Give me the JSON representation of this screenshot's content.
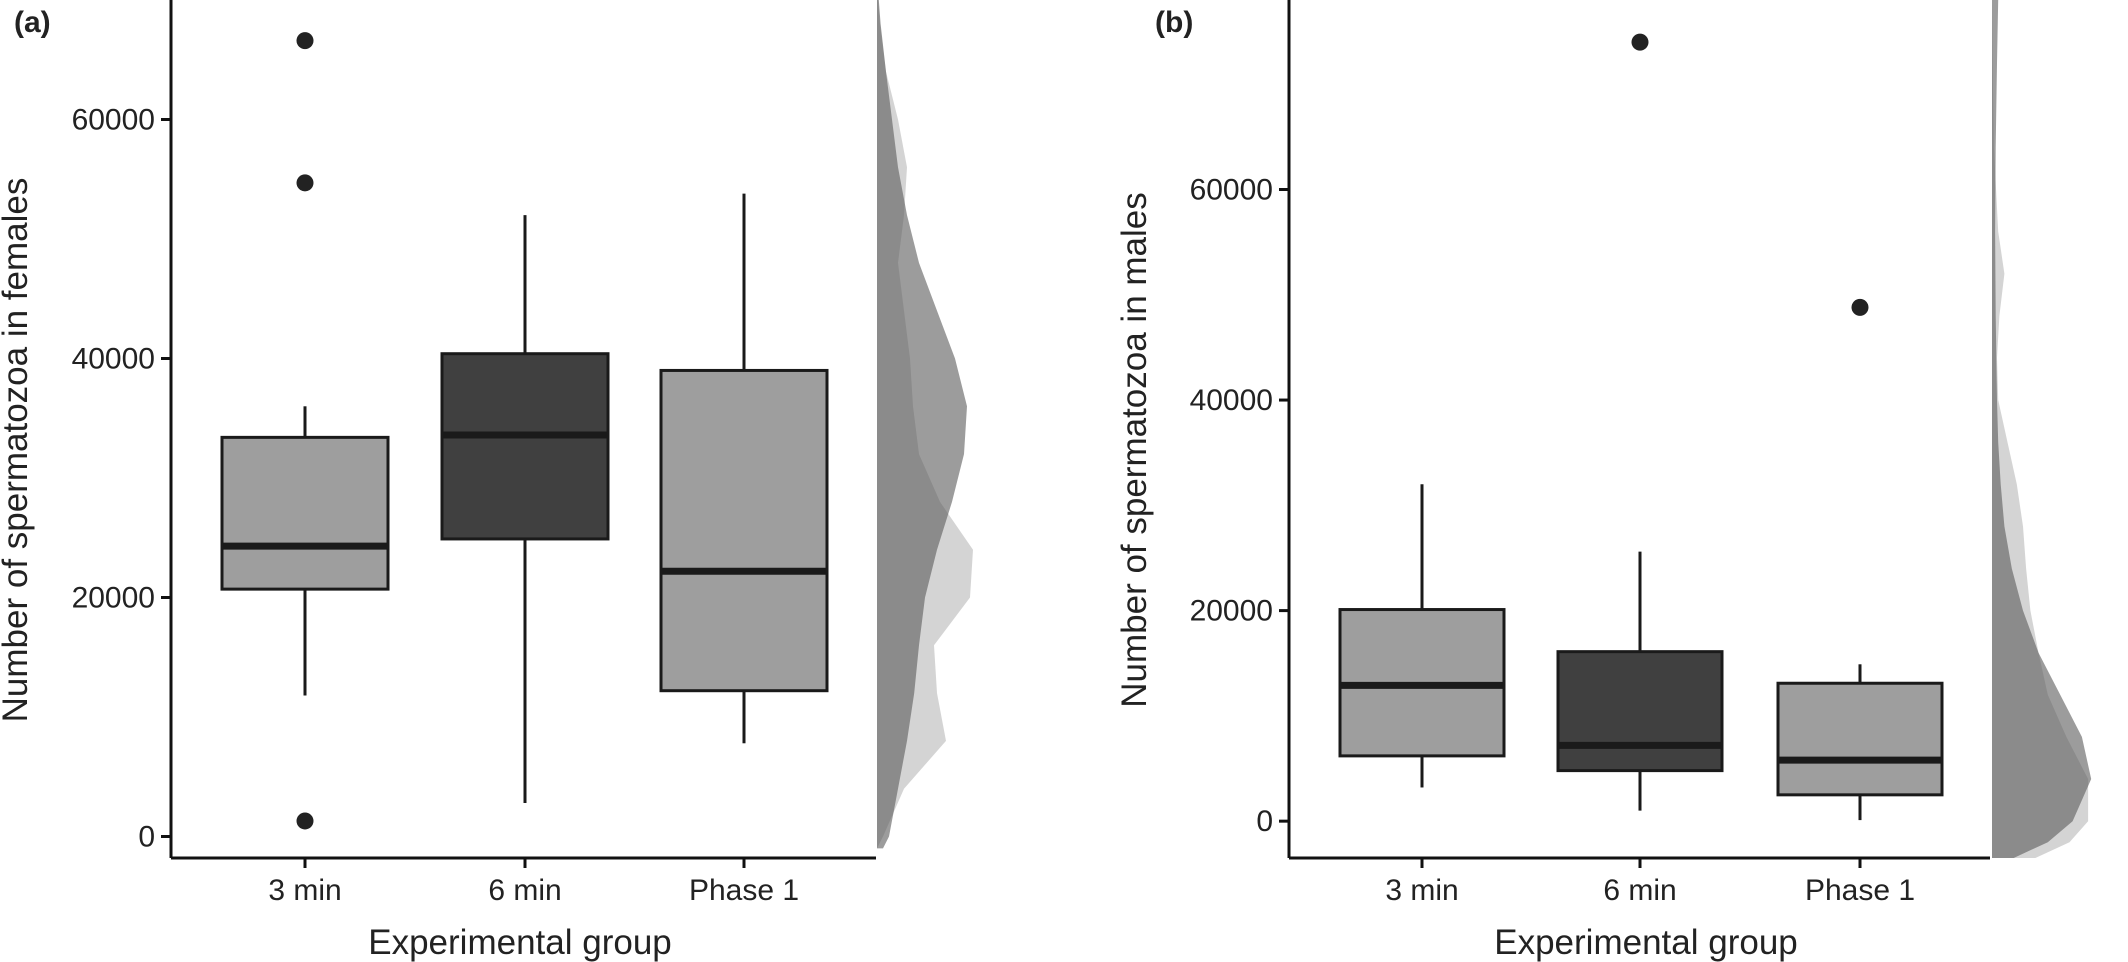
{
  "chart_data": [
    {
      "panel_label": "(a)",
      "type": "box",
      "xlabel": "Experimental group",
      "ylabel": "Number of spermatozoa in females",
      "ylim": [
        -1800,
        70000
      ],
      "yticks": [
        0,
        20000,
        40000,
        60000
      ],
      "ytick_labels": [
        "0",
        "20000",
        "40000",
        "60000"
      ],
      "categories": [
        "3 min",
        "6 min",
        "Phase 1"
      ],
      "grid": false,
      "colors": {
        "fill_light": "#9e9e9e",
        "fill_dark": "#404040",
        "stroke": "#1a1a1a",
        "outlier": "#222222"
      },
      "boxes": [
        {
          "category": "3 min",
          "q1": 20700,
          "median": 24300,
          "q3": 33400,
          "whisker_low": 11800,
          "whisker_high": 36000,
          "outliers": [
            66600,
            54700,
            1300
          ],
          "fill": "light"
        },
        {
          "category": "6 min",
          "q1": 24900,
          "median": 33600,
          "q3": 40400,
          "whisker_low": 2800,
          "whisker_high": 52000,
          "outliers": [],
          "fill": "dark"
        },
        {
          "category": "Phase 1",
          "q1": 12200,
          "median": 22200,
          "q3": 39000,
          "whisker_low": 7800,
          "whisker_high": 53800,
          "outliers": [],
          "fill": "light"
        }
      ],
      "density_margin": {
        "dark": {
          "y": [
            -1000,
            0,
            4000,
            8000,
            12000,
            16000,
            20000,
            24000,
            28000,
            32000,
            36000,
            40000,
            44000,
            48000,
            52000,
            56000,
            60000,
            64000,
            68000,
            70000
          ],
          "density": [
            0.1,
            0.2,
            0.35,
            0.5,
            0.62,
            0.7,
            0.8,
            1.0,
            1.25,
            1.45,
            1.5,
            1.3,
            1.0,
            0.7,
            0.5,
            0.35,
            0.25,
            0.15,
            0.06,
            0.03
          ]
        },
        "light": {
          "y": [
            -1000,
            0,
            4000,
            8000,
            12000,
            16000,
            20000,
            24000,
            28000,
            32000,
            36000,
            40000,
            44000,
            48000,
            52000,
            56000,
            60000,
            64000,
            68000,
            70000
          ],
          "density": [
            0.0,
            0.1,
            0.45,
            1.15,
            1.0,
            0.95,
            1.55,
            1.6,
            1.05,
            0.7,
            0.6,
            0.55,
            0.45,
            0.35,
            0.45,
            0.5,
            0.35,
            0.15,
            0.05,
            0.02
          ]
        }
      }
    },
    {
      "panel_label": "(b)",
      "type": "box",
      "xlabel": "Experimental group",
      "ylabel": "Number of spermatozoa in males",
      "ylim": [
        -3500,
        78000
      ],
      "yticks": [
        0,
        20000,
        40000,
        60000
      ],
      "ytick_labels": [
        "0",
        "20000",
        "40000",
        "60000"
      ],
      "categories": [
        "3 min",
        "6 min",
        "Phase 1"
      ],
      "grid": false,
      "colors": {
        "fill_light": "#9e9e9e",
        "fill_dark": "#404040",
        "stroke": "#1a1a1a",
        "outlier": "#222222"
      },
      "boxes": [
        {
          "category": "3 min",
          "q1": 6200,
          "median": 12900,
          "q3": 20100,
          "whisker_low": 3200,
          "whisker_high": 32000,
          "outliers": [],
          "fill": "light"
        },
        {
          "category": "6 min",
          "q1": 4800,
          "median": 7200,
          "q3": 16100,
          "whisker_low": 1000,
          "whisker_high": 25600,
          "outliers": [
            74000
          ],
          "fill": "dark"
        },
        {
          "category": "Phase 1",
          "q1": 2500,
          "median": 5800,
          "q3": 13100,
          "whisker_low": 100,
          "whisker_high": 14900,
          "outliers": [
            48800
          ],
          "fill": "light"
        }
      ],
      "density_margin": {
        "dark": {
          "y": [
            -3500,
            -2000,
            0,
            4000,
            8000,
            12000,
            16000,
            20000,
            24000,
            28000,
            32000,
            36000,
            40000,
            48000,
            56000,
            64000,
            72000,
            78000
          ],
          "density": [
            0.35,
            0.9,
            1.3,
            1.6,
            1.45,
            1.1,
            0.75,
            0.5,
            0.32,
            0.2,
            0.14,
            0.1,
            0.08,
            0.06,
            0.05,
            0.06,
            0.08,
            0.1
          ]
        },
        "light": {
          "y": [
            -3500,
            -2000,
            0,
            4000,
            8000,
            12000,
            16000,
            20000,
            24000,
            28000,
            32000,
            36000,
            40000,
            44000,
            48000,
            52000,
            56000,
            64000,
            72000,
            78000
          ],
          "density": [
            0.7,
            1.25,
            1.55,
            1.55,
            1.2,
            0.9,
            0.75,
            0.62,
            0.55,
            0.5,
            0.4,
            0.25,
            0.1,
            0.08,
            0.12,
            0.2,
            0.1,
            0.03,
            0.01,
            0.0
          ]
        }
      }
    }
  ]
}
